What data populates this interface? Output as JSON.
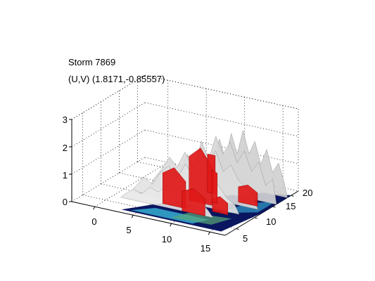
{
  "chart_data": {
    "type": "surface3d",
    "title": "Storm 7869",
    "subtitle": "(U,V) (1.8171,-0.85557)",
    "grid": true,
    "axes": {
      "x": {
        "ticks": [
          "0",
          "5",
          "10",
          "15"
        ],
        "range": [
          -3,
          17
        ]
      },
      "y": {
        "ticks": [
          "5",
          "10",
          "15",
          "20"
        ],
        "range": [
          2,
          22
        ]
      },
      "z": {
        "ticks": [
          "0",
          "1",
          "2",
          "3"
        ],
        "range": [
          0,
          3
        ]
      }
    },
    "colors": {
      "surface": "#d2d2d2",
      "storm_core": "#e01818",
      "base_dark": "#0a1660",
      "base_cyan": "#38b6d8",
      "base_green": "#58a878"
    }
  }
}
